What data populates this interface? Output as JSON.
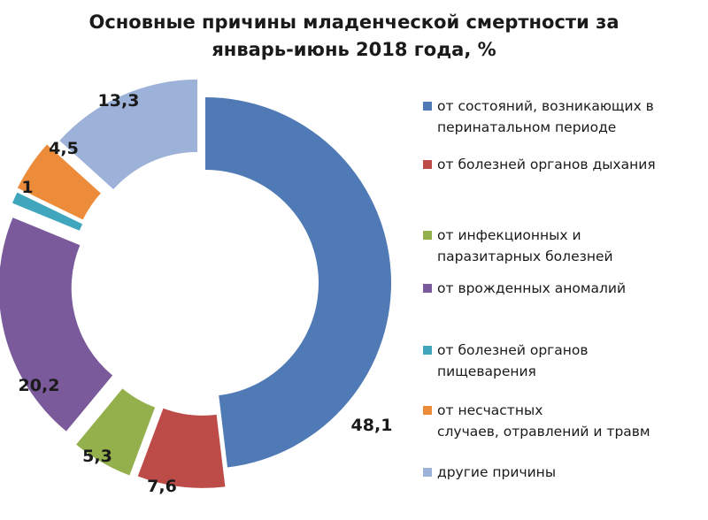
{
  "chart_data": {
    "type": "pie",
    "variant": "exploded-donut",
    "title_lines": [
      "Основные причины младенческой смертности за",
      "январь-июнь 2018 года, %"
    ],
    "unit": "%",
    "slices": [
      {
        "label": "от состояний, возникающих в перинатальном периоде",
        "legend_lines": [
          "от состояний, возникающих в",
          "перинатальном периоде"
        ],
        "value": 48.1,
        "value_label": "48,1",
        "color": "#4f7ab5"
      },
      {
        "label": "от болезней органов дыхания",
        "legend_lines": [
          "от болезней органов дыхания"
        ],
        "value": 7.6,
        "value_label": "7,6",
        "color": "#bd4b48"
      },
      {
        "label": "от инфекционных и паразитарных болезней",
        "legend_lines": [
          "от инфекционных и",
          "паразитарных болезней"
        ],
        "value": 5.3,
        "value_label": "5,3",
        "color": "#93b04d"
      },
      {
        "label": "от врожденных аномалий",
        "legend_lines": [
          "от врожденных аномалий"
        ],
        "value": 20.2,
        "value_label": "20,2",
        "color": "#7a5a9a"
      },
      {
        "label": "от болезней органов пищеварения",
        "legend_lines": [
          "от болезней органов",
          "пищеварения"
        ],
        "value": 1,
        "value_label": "1",
        "color": "#3fa6bd"
      },
      {
        "label": "от несчастных случаев, отравлений и травм",
        "legend_lines": [
          "от несчастных",
          "случаев, отравлений и травм"
        ],
        "value": 4.5,
        "value_label": "4,5",
        "color": "#ec8c3a"
      },
      {
        "label": "другие причины",
        "legend_lines": [
          "другие причины"
        ],
        "value": 13.3,
        "value_label": "13,3",
        "color": "#9db2d8"
      }
    ],
    "legend_position": "right"
  }
}
